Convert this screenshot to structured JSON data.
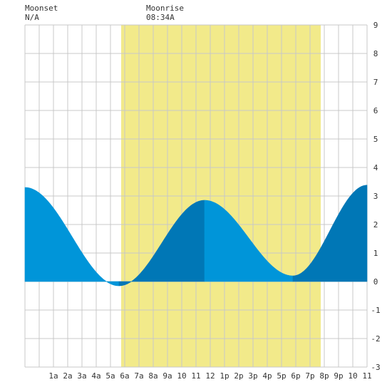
{
  "header": {
    "moonset_label": "Moonset",
    "moonset_value": "N/A",
    "moonrise_label": "Moonrise",
    "moonrise_value": "08:34A"
  },
  "chart_data": {
    "type": "area",
    "title": "",
    "xlabel": "",
    "ylabel": "",
    "x_range_hours": [
      -1,
      23
    ],
    "ylim": [
      -3,
      9
    ],
    "y_ticks": [
      -3,
      -2,
      -1,
      0,
      1,
      2,
      3,
      4,
      5,
      6,
      7,
      8,
      9
    ],
    "x_tick_hours": [
      1,
      2,
      3,
      4,
      5,
      6,
      7,
      8,
      9,
      10,
      11,
      12,
      13,
      14,
      15,
      16,
      17,
      18,
      19,
      20,
      21,
      22,
      23
    ],
    "x_tick_labels": [
      "1a",
      "2a",
      "3a",
      "4a",
      "5a",
      "6a",
      "7a",
      "8a",
      "9a",
      "10",
      "11",
      "12",
      "1p",
      "2p",
      "3p",
      "4p",
      "5p",
      "6p",
      "7p",
      "8p",
      "9p",
      "10",
      "11"
    ],
    "grid": true,
    "daylight": {
      "start_hour": 5.75,
      "end_hour": 19.75,
      "color": "#f2ea8a"
    },
    "tide_extremes": [
      {
        "hour": -1.0,
        "height": 3.3
      },
      {
        "hour": 5.6,
        "height": -0.15
      },
      {
        "hour": 11.6,
        "height": 2.85
      },
      {
        "hour": 17.8,
        "height": 0.2
      },
      {
        "hour": 23.0,
        "height": 3.38
      }
    ],
    "shading": [
      {
        "from_hour": -1.0,
        "to_hour": 5.6,
        "trend": "falling",
        "color": "#0095d9"
      },
      {
        "from_hour": 5.6,
        "to_hour": 11.6,
        "trend": "rising",
        "color": "#0077b6"
      },
      {
        "from_hour": 11.6,
        "to_hour": 17.8,
        "trend": "falling",
        "color": "#0095d9"
      },
      {
        "from_hour": 17.8,
        "to_hour": 23.0,
        "trend": "rising",
        "color": "#0077b6"
      }
    ],
    "colors": {
      "background": "#ffffff",
      "grid": "#c8c8c8",
      "axis_text": "#333333"
    }
  }
}
